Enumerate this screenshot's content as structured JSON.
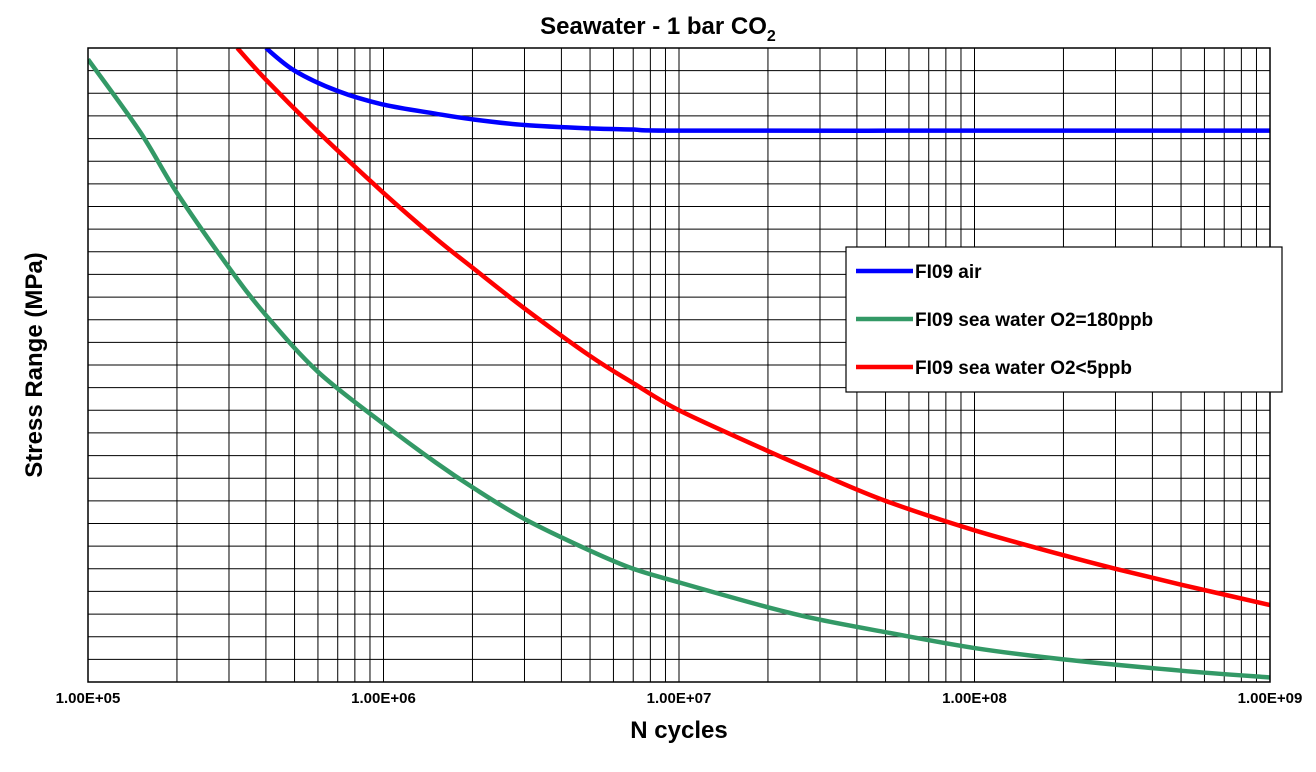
{
  "chart_data": {
    "type": "line",
    "title": "Seawater - 1 bar CO",
    "title_subscript": "2",
    "xlabel": "N cycles",
    "ylabel": "Stress Range (MPa)",
    "x_scale": "log",
    "xlim": [
      100000,
      1000000000
    ],
    "x_ticks": [
      100000,
      1000000,
      10000000,
      100000000,
      1000000000
    ],
    "x_tick_labels": [
      "1.00E+05",
      "1.00E+06",
      "1.00E+07",
      "1.00E+08",
      "1.00E+09"
    ],
    "y_tick_labels_shown": false,
    "ylim": [
      0,
      28
    ],
    "grid": true,
    "legend_position": "right",
    "series": [
      {
        "name": "FI09 air",
        "color": "#0000ff",
        "points": [
          [
            400000,
            28
          ],
          [
            500000,
            27.0
          ],
          [
            700000,
            26.1
          ],
          [
            1000000,
            25.5
          ],
          [
            1500000,
            25.1
          ],
          [
            2000000,
            24.85
          ],
          [
            3000000,
            24.6
          ],
          [
            5000000,
            24.45
          ],
          [
            7000000,
            24.4
          ],
          [
            10000000,
            24.35
          ],
          [
            100000000,
            24.35
          ],
          [
            1000000000,
            24.35
          ]
        ]
      },
      {
        "name": "FI09 sea water O2=180ppb",
        "color": "#339966",
        "points": [
          [
            100000,
            27.5
          ],
          [
            150000,
            24.3
          ],
          [
            200000,
            21.6
          ],
          [
            300000,
            18.3
          ],
          [
            400000,
            16.2
          ],
          [
            600000,
            13.7
          ],
          [
            1000000,
            11.4
          ],
          [
            1500000,
            9.7
          ],
          [
            2000000,
            8.6
          ],
          [
            3000000,
            7.2
          ],
          [
            5000000,
            5.8
          ],
          [
            7000000,
            5.0
          ],
          [
            10000000,
            4.4
          ],
          [
            20000000,
            3.3
          ],
          [
            30000000,
            2.75
          ],
          [
            50000000,
            2.2
          ],
          [
            100000000,
            1.5
          ],
          [
            200000000,
            1.0
          ],
          [
            500000000,
            0.5
          ],
          [
            1000000000,
            0.2
          ]
        ]
      },
      {
        "name": "FI09 sea water O2<5ppb",
        "color": "#ff0000",
        "points": [
          [
            320000,
            28
          ],
          [
            400000,
            26.6
          ],
          [
            600000,
            24.3
          ],
          [
            1000000,
            21.6
          ],
          [
            1500000,
            19.6
          ],
          [
            2000000,
            18.3
          ],
          [
            3000000,
            16.5
          ],
          [
            5000000,
            14.4
          ],
          [
            7000000,
            13.2
          ],
          [
            10000000,
            12.0
          ],
          [
            20000000,
            10.2
          ],
          [
            30000000,
            9.2
          ],
          [
            50000000,
            8.0
          ],
          [
            100000000,
            6.7
          ],
          [
            200000000,
            5.6
          ],
          [
            300000000,
            5.0
          ],
          [
            500000000,
            4.3
          ],
          [
            1000000000,
            3.4
          ]
        ]
      }
    ]
  }
}
